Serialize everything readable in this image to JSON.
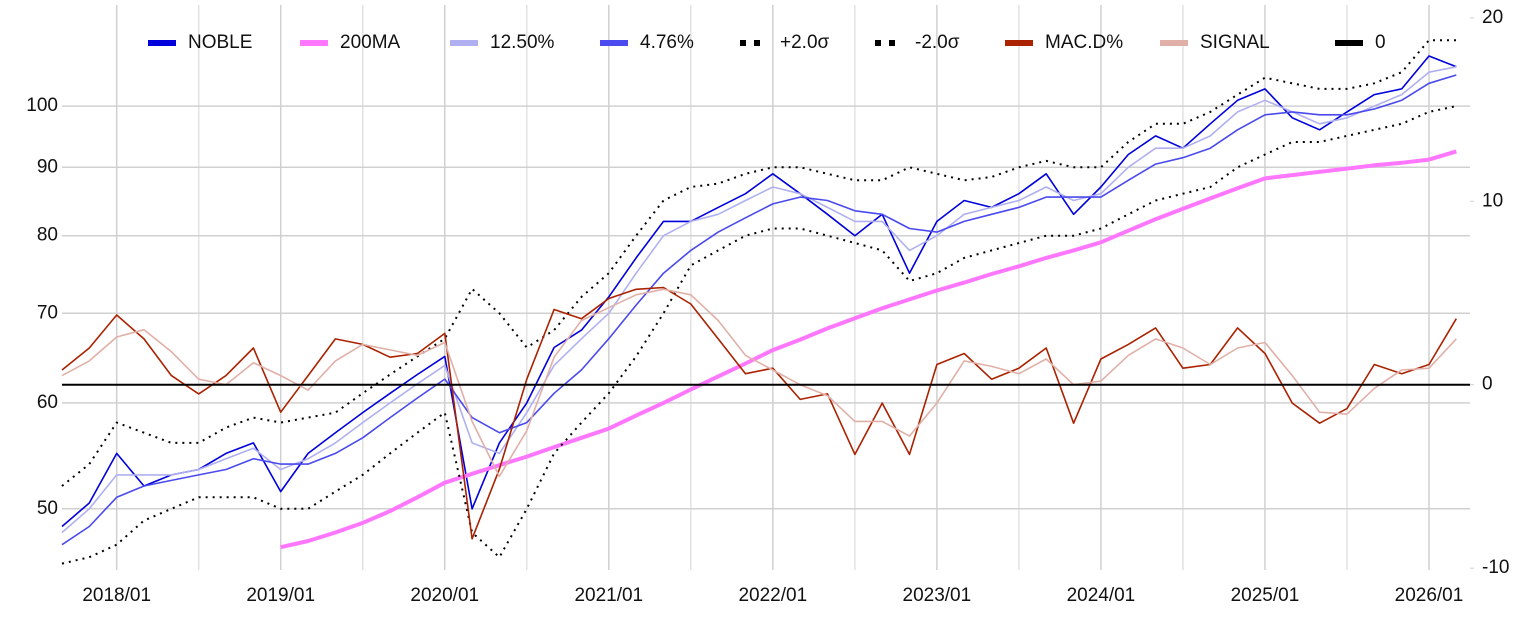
{
  "chart_data": {
    "type": "line",
    "x": [
      "2017/09",
      "2017/11",
      "2018/01",
      "2018/03",
      "2018/05",
      "2018/07",
      "2018/09",
      "2018/11",
      "2019/01",
      "2019/03",
      "2019/05",
      "2019/07",
      "2019/09",
      "2019/11",
      "2020/01",
      "2020/03",
      "2020/05",
      "2020/07",
      "2020/09",
      "2020/11",
      "2021/01",
      "2021/03",
      "2021/05",
      "2021/07",
      "2021/09",
      "2021/11",
      "2022/01",
      "2022/03",
      "2022/05",
      "2022/07",
      "2022/09",
      "2022/11",
      "2023/01",
      "2023/03",
      "2023/05",
      "2023/07",
      "2023/09",
      "2023/11",
      "2024/01",
      "2024/03",
      "2024/05",
      "2024/07",
      "2024/09",
      "2024/11",
      "2025/01",
      "2025/03",
      "2025/05",
      "2025/07",
      "2025/09",
      "2025/11",
      "2026/01",
      "2026/03"
    ],
    "xlim": [
      "2017/09",
      "2026/04"
    ],
    "xticks": [
      "2018/01",
      "2019/01",
      "2020/01",
      "2021/01",
      "2022/01",
      "2023/01",
      "2024/01",
      "2025/01",
      "2026/01"
    ],
    "ylim": [
      45,
      119
    ],
    "yscale": "log",
    "yticks": [
      50,
      60,
      70,
      80,
      90,
      100
    ],
    "y2lim": [
      -10.1,
      20.7
    ],
    "y2ticks": [
      -10,
      0,
      10,
      20
    ],
    "grid": true,
    "legend": "top",
    "series": [
      {
        "name": "NOBLE",
        "color": "#0000dd",
        "style": "solid",
        "values": [
          48.5,
          50.5,
          55,
          52,
          53,
          53.5,
          55,
          56,
          51.5,
          55,
          57,
          59,
          61,
          63,
          65,
          50,
          56,
          60,
          66,
          68,
          72,
          77,
          82,
          82,
          84,
          86,
          89,
          86,
          83,
          80,
          83,
          75,
          82,
          85,
          84,
          86,
          89,
          83,
          87,
          92,
          95,
          93,
          97,
          101,
          103,
          98,
          96,
          99,
          102,
          103,
          109,
          107
        ]
      },
      {
        "name": "200MA",
        "color": "#ff77ff",
        "style": "thick",
        "values": [
          null,
          null,
          null,
          null,
          null,
          null,
          null,
          null,
          46.8,
          47.3,
          48,
          48.8,
          49.8,
          51,
          52.3,
          53.1,
          53.9,
          54.7,
          55.6,
          56.5,
          57.4,
          58.7,
          60,
          61.4,
          62.8,
          64.2,
          65.7,
          66.9,
          68.2,
          69.4,
          70.6,
          71.7,
          72.8,
          73.8,
          74.9,
          75.9,
          77,
          78,
          79.1,
          80.7,
          82.3,
          83.8,
          85.3,
          86.8,
          88.3,
          88.8,
          89.3,
          89.8,
          90.3,
          90.7,
          91.2,
          92.5
        ]
      },
      {
        "name": "12.50%",
        "color": "#b0b0f0",
        "style": "solid",
        "values": [
          48,
          50,
          53,
          53,
          53,
          53.5,
          54.5,
          55.5,
          53.5,
          54.5,
          56,
          58,
          60,
          62,
          64,
          56,
          55,
          59,
          64,
          67,
          70,
          75,
          80,
          82,
          83,
          85,
          87,
          86,
          84,
          82,
          82,
          78,
          80,
          83,
          84,
          85,
          87,
          85,
          86,
          90,
          93,
          93,
          95,
          99,
          101,
          99,
          97,
          98,
          100,
          102,
          106,
          107
        ]
      },
      {
        "name": "4.76%",
        "color": "#4a4aee",
        "style": "solid",
        "values": [
          47,
          48.5,
          51,
          52,
          52.5,
          53,
          53.5,
          54.5,
          54,
          54,
          55,
          56.5,
          58.5,
          60.5,
          62.5,
          58.5,
          57,
          58,
          61,
          63.5,
          67,
          71,
          75,
          78,
          80.5,
          82.5,
          84.5,
          85.5,
          85,
          83.5,
          83,
          81,
          80.5,
          82,
          83,
          84,
          85.5,
          85.5,
          85.5,
          88,
          90.5,
          91.5,
          93,
          96,
          98.5,
          99,
          98.5,
          98.5,
          99.5,
          101,
          104,
          105.5
        ]
      },
      {
        "name": "+2.0σ",
        "color": "#000000",
        "style": "dotted",
        "values": [
          52,
          54,
          58,
          57,
          56,
          56,
          57.5,
          58.5,
          58,
          58.5,
          59,
          61,
          63,
          65,
          67,
          73,
          70,
          66,
          68,
          72,
          75,
          80,
          85,
          87,
          87.5,
          89,
          90,
          90,
          89,
          88,
          88,
          90,
          89,
          88,
          88.5,
          90,
          91,
          90,
          90,
          94,
          97,
          97,
          99,
          102,
          105,
          104,
          103,
          103,
          104,
          106,
          112,
          112
        ]
      },
      {
        "name": "-2.0σ",
        "color": "#000000",
        "style": "dotted",
        "values": [
          45.5,
          46,
          47,
          49,
          50,
          51,
          51,
          51,
          50,
          50,
          51.5,
          53,
          55,
          57,
          59,
          48,
          46,
          50,
          55,
          58,
          61,
          65,
          70,
          76,
          78,
          80,
          81,
          81,
          80,
          79,
          78,
          74,
          75,
          77,
          78,
          79,
          80,
          80,
          81,
          83,
          85,
          86,
          87,
          90,
          92,
          94,
          94,
          95,
          96,
          97,
          99,
          100
        ]
      },
      {
        "name": "MAC.D%",
        "color": "#aa2200",
        "style": "solid",
        "axis": "y2",
        "values": [
          0.8,
          2.0,
          3.8,
          2.5,
          0.5,
          -0.5,
          0.5,
          2.0,
          -1.5,
          0.5,
          2.5,
          2.2,
          1.5,
          1.7,
          2.8,
          -8.4,
          -4.6,
          0.3,
          4.1,
          3.6,
          4.7,
          5.2,
          5.3,
          4.4,
          2.5,
          0.6,
          0.9,
          -0.8,
          -0.5,
          -3.8,
          -1.0,
          -3.8,
          1.1,
          1.7,
          0.3,
          0.9,
          2.0,
          -2.1,
          1.4,
          2.2,
          3.1,
          0.9,
          1.1,
          3.1,
          1.7,
          -1.0,
          -2.1,
          -1.3,
          1.1,
          0.6,
          1.1,
          3.6
        ]
      },
      {
        "name": "SIGNAL",
        "color": "#e0b0a8",
        "style": "solid",
        "axis": "y2",
        "values": [
          0.5,
          1.3,
          2.6,
          3.0,
          1.8,
          0.3,
          0,
          1.2,
          0.5,
          -0.3,
          1.3,
          2.2,
          1.9,
          1.6,
          2.3,
          -2,
          -5,
          -2.5,
          1.5,
          3.5,
          4.2,
          4.9,
          5.2,
          4.9,
          3.5,
          1.6,
          0.8,
          0,
          -0.6,
          -2,
          -2,
          -2.8,
          -1,
          1.3,
          1,
          0.6,
          1.4,
          0,
          0.2,
          1.6,
          2.5,
          2,
          1.1,
          2,
          2.3,
          0.5,
          -1.5,
          -1.6,
          -0.2,
          0.8,
          0.9,
          2.5
        ]
      },
      {
        "name": "0",
        "color": "#000000",
        "style": "solid",
        "axis": "y2",
        "value": 0
      }
    ]
  }
}
